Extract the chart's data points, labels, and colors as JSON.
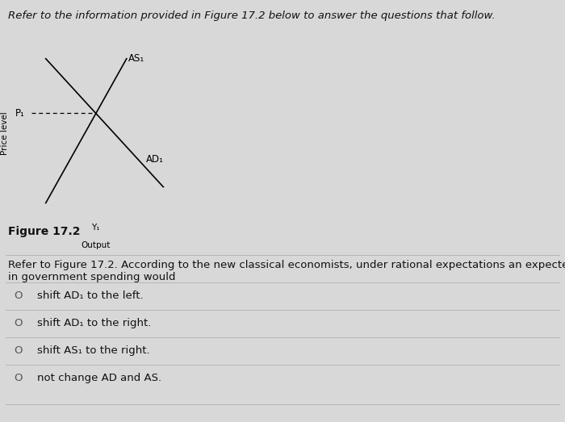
{
  "title": "Refer to the information provided in Figure 17.2 below to answer the questions that follow.",
  "title_fontsize": 9.5,
  "title_style": "italic",
  "figure_label": "Figure 17.2",
  "figure_label_fontsize": 10,
  "ylabel": "Price level",
  "xlabel_label": "Output",
  "y1_label": "Y₁",
  "p1_label": "P₁",
  "as_label": "AS₁",
  "ad_label": "AD₁",
  "page_bg": "#d8d8d8",
  "question_text": "Refer to Figure 17.2. According to the new classical economists, under rational expectations an expected decrease\nin government spending would",
  "question_fontsize": 9.5,
  "options": [
    "shift AD₁ to the left.",
    "shift AD₁ to the right.",
    "shift AS₁ to the right.",
    "not change AD and AS."
  ],
  "options_fontsize": 9.5,
  "separator_color": "#b0b0b0",
  "option_circle_color": "#555555"
}
